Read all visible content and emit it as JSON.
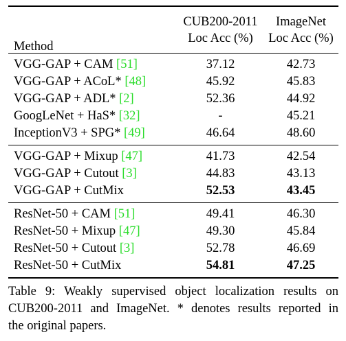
{
  "header": {
    "method": "Method",
    "col1_line1": "CUB200-2011",
    "col1_line2": "Loc Acc (%)",
    "col2_line1": "ImageNet",
    "col2_line2": "Loc Acc (%)"
  },
  "groups": [
    [
      {
        "method": "VGG-GAP + CAM ",
        "ref": "[51]",
        "cub": "37.12",
        "imagenet": "42.73"
      },
      {
        "method": "VGG-GAP + ACoL* ",
        "ref": "[48]",
        "cub": "45.92",
        "imagenet": "45.83"
      },
      {
        "method": "VGG-GAP + ADL* ",
        "ref": "[2]",
        "cub": "52.36",
        "imagenet": "44.92"
      },
      {
        "method": "GoogLeNet + HaS* ",
        "ref": "[32]",
        "cub": "-",
        "imagenet": "45.21"
      },
      {
        "method": "InceptionV3 + SPG* ",
        "ref": "[49]",
        "cub": "46.64",
        "imagenet": "48.60"
      }
    ],
    [
      {
        "method": "VGG-GAP + Mixup ",
        "ref": "[47]",
        "cub": "41.73",
        "imagenet": "42.54"
      },
      {
        "method": "VGG-GAP + Cutout ",
        "ref": "[3]",
        "cub": "44.83",
        "imagenet": "43.13"
      },
      {
        "method": "VGG-GAP + CutMix",
        "ref": "",
        "cub": "52.53",
        "imagenet": "43.45"
      }
    ],
    [
      {
        "method": "ResNet-50 + CAM ",
        "ref": "[51]",
        "cub": "49.41",
        "imagenet": "46.30"
      },
      {
        "method": "ResNet-50 + Mixup ",
        "ref": "[47]",
        "cub": "49.30",
        "imagenet": "45.84"
      },
      {
        "method": "ResNet-50 + Cutout ",
        "ref": "[3]",
        "cub": "52.78",
        "imagenet": "46.69"
      },
      {
        "method": "ResNet-50 + CutMix",
        "ref": "",
        "cub": "54.81",
        "imagenet": "47.25"
      }
    ]
  ],
  "caption": {
    "line1": "Table 9: Weakly supervised object localization results on",
    "line2": "CUB200-2011 and ImageNet. * denotes results reported in",
    "line3": "the original papers."
  },
  "colors": {
    "citation": "#2bdc2b"
  }
}
